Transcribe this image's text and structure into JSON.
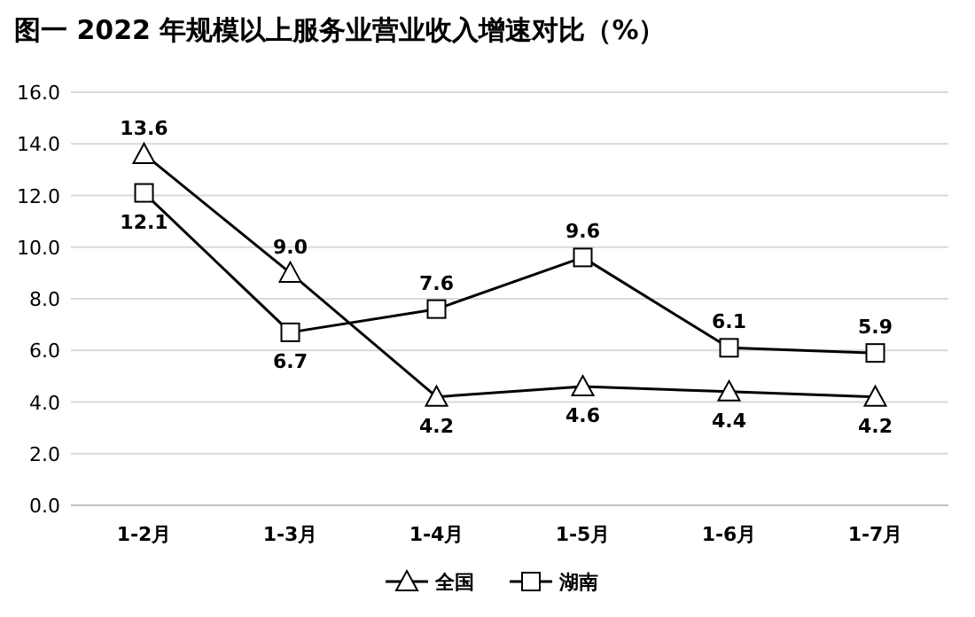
{
  "chart_data": {
    "type": "line",
    "title": "图一  2022 年规模以上服务业营业收入增速对比（%）",
    "categories": [
      "1-2月",
      "1-3月",
      "1-4月",
      "1-5月",
      "1-6月",
      "1-7月"
    ],
    "series": [
      {
        "name": "全国",
        "color": "#000000",
        "marker": "triangle",
        "values": [
          13.6,
          9.0,
          4.2,
          4.6,
          4.4,
          4.2
        ],
        "value_labels": [
          "13.6",
          "9.0",
          "4.2",
          "4.6",
          "4.4",
          "4.2"
        ]
      },
      {
        "name": "湖南",
        "color": "#000000",
        "marker": "square",
        "values": [
          12.1,
          6.7,
          7.6,
          9.6,
          6.1,
          5.9
        ],
        "value_labels": [
          "12.1",
          "6.7",
          "7.6",
          "9.6",
          "6.1",
          "5.9"
        ]
      }
    ],
    "ylim": [
      0,
      16
    ],
    "yticks": [
      {
        "value": 0,
        "label": "0.0"
      },
      {
        "value": 2,
        "label": "2.0"
      },
      {
        "value": 4,
        "label": "4.0"
      },
      {
        "value": 6,
        "label": "6.0"
      },
      {
        "value": 8,
        "label": "8.0"
      },
      {
        "value": 10,
        "label": "10.0"
      },
      {
        "value": 12,
        "label": "12.0"
      },
      {
        "value": 14,
        "label": "14.0"
      },
      {
        "value": 16,
        "label": "16.0"
      }
    ],
    "grid": "y",
    "legend": "bottom",
    "line_style": "solid"
  }
}
